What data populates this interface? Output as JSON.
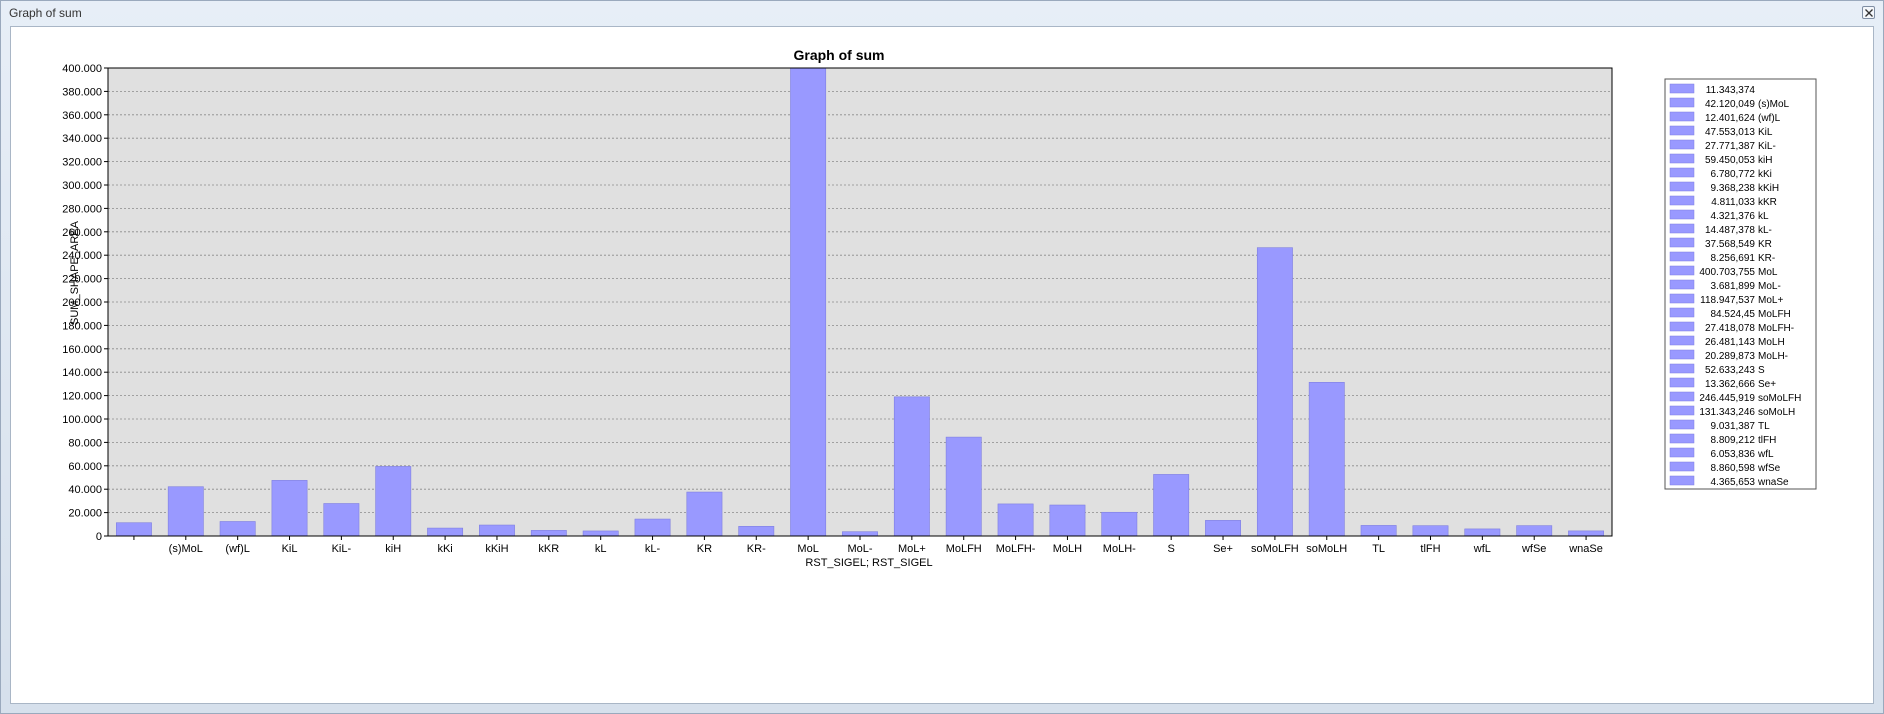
{
  "window": {
    "title": "Graph of sum"
  },
  "chart_data": {
    "type": "bar",
    "title": "Graph of sum",
    "xlabel": "RST_SIGEL; RST_SIGEL",
    "ylabel": "SUM_SHAPE_AREA",
    "ylim": [
      0,
      400000
    ],
    "yticks": [
      0,
      20000,
      40000,
      60000,
      80000,
      100000,
      120000,
      140000,
      160000,
      180000,
      200000,
      220000,
      240000,
      260000,
      280000,
      300000,
      320000,
      340000,
      360000,
      380000,
      400000
    ],
    "ytick_labels": [
      "0",
      "20.000",
      "40.000",
      "60.000",
      "80.000",
      "100.000",
      "120.000",
      "140.000",
      "160.000",
      "180.000",
      "200.000",
      "220.000",
      "240.000",
      "260.000",
      "280.000",
      "300.000",
      "320.000",
      "340.000",
      "360.000",
      "380.000",
      "400.000"
    ],
    "grid": true,
    "legend_position": "right",
    "bar_color": "#9999ff",
    "plot_background": "#e0e0e0",
    "categories": [
      "",
      "(s)MoL",
      "(wf)L",
      "KiL",
      "KiL-",
      "kiH",
      "kKi",
      "kKiH",
      "kKR",
      "kL",
      "kL-",
      "KR",
      "KR-",
      "MoL",
      "MoL-",
      "MoL+",
      "MoLFH",
      "MoLFH-",
      "MoLH",
      "MoLH-",
      "S",
      "Se+",
      "soMoLFH",
      "soMoLH",
      "TL",
      "tlFH",
      "wfL",
      "wfSe",
      "wnaSe"
    ],
    "values": [
      11343.374,
      42120.049,
      12401.624,
      47553.013,
      27771.387,
      59450.053,
      6780.772,
      9368.238,
      4811.033,
      4321.376,
      14487.378,
      37568.549,
      8256.691,
      400703.755,
      3681.899,
      118947.537,
      84524.45,
      27418.078,
      26481.143,
      20289.873,
      52633.243,
      13362.666,
      246445.919,
      131343.246,
      9031.387,
      8809.212,
      6053.836,
      8860.598,
      4365.653
    ],
    "legend": [
      {
        "value": "11.343,374",
        "name": ""
      },
      {
        "value": "42.120,049",
        "name": "(s)MoL"
      },
      {
        "value": "12.401,624",
        "name": "(wf)L"
      },
      {
        "value": "47.553,013",
        "name": "KiL"
      },
      {
        "value": "27.771,387",
        "name": "KiL-"
      },
      {
        "value": "59.450,053",
        "name": "kiH"
      },
      {
        "value": "6.780,772",
        "name": "kKi"
      },
      {
        "value": "9.368,238",
        "name": "kKiH"
      },
      {
        "value": "4.811,033",
        "name": "kKR"
      },
      {
        "value": "4.321,376",
        "name": "kL"
      },
      {
        "value": "14.487,378",
        "name": "kL-"
      },
      {
        "value": "37.568,549",
        "name": "KR"
      },
      {
        "value": "8.256,691",
        "name": "KR-"
      },
      {
        "value": "400.703,755",
        "name": "MoL"
      },
      {
        "value": "3.681,899",
        "name": "MoL-"
      },
      {
        "value": "118.947,537",
        "name": "MoL+"
      },
      {
        "value": "84.524,45",
        "name": "MoLFH"
      },
      {
        "value": "27.418,078",
        "name": "MoLFH-"
      },
      {
        "value": "26.481,143",
        "name": "MoLH"
      },
      {
        "value": "20.289,873",
        "name": "MoLH-"
      },
      {
        "value": "52.633,243",
        "name": "S"
      },
      {
        "value": "13.362,666",
        "name": "Se+"
      },
      {
        "value": "246.445,919",
        "name": "soMoLFH"
      },
      {
        "value": "131.343,246",
        "name": "soMoLH"
      },
      {
        "value": "9.031,387",
        "name": "TL"
      },
      {
        "value": "8.809,212",
        "name": "tlFH"
      },
      {
        "value": "6.053,836",
        "name": "wfL"
      },
      {
        "value": "8.860,598",
        "name": "wfSe"
      },
      {
        "value": "4.365,653",
        "name": "wnaSe"
      }
    ]
  }
}
